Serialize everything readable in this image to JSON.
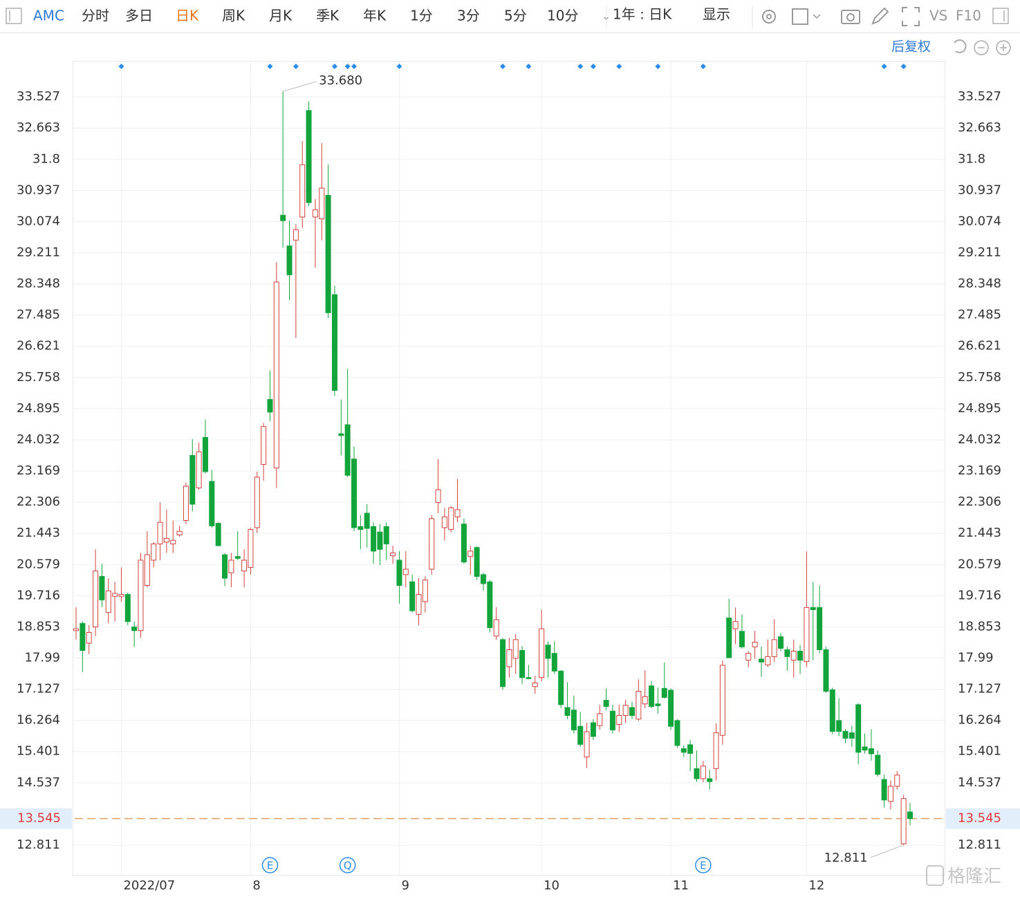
{
  "toolbar": {
    "symbol": "AMC",
    "periods": [
      "分时",
      "多日",
      "日K",
      "周K",
      "月K",
      "季K",
      "年K",
      "1分",
      "3分",
      "5分",
      "10分"
    ],
    "active_period": 2,
    "range": "1年 : 日K",
    "display": "显示",
    "compare": "VS",
    "f10": "F10"
  },
  "adjust": "后复权",
  "watermark": "格隆汇",
  "chart_data": {
    "type": "candlestick",
    "categories": [
      null,
      null,
      null,
      null,
      null,
      null,
      null,
      "2022/07",
      null,
      null,
      null,
      null,
      null,
      null,
      null,
      null,
      null,
      null,
      null,
      null,
      null,
      null,
      null,
      null,
      null,
      null,
      null,
      "8",
      null,
      null,
      null,
      null,
      null,
      null,
      null,
      null,
      null,
      null,
      null,
      null,
      null,
      null,
      null,
      null,
      null,
      null,
      null,
      null,
      null,
      null,
      "9",
      null,
      null,
      null,
      null,
      null,
      null,
      null,
      null,
      null,
      null,
      null,
      null,
      null,
      null,
      null,
      null,
      null,
      null,
      null,
      null,
      null,
      "10",
      null,
      null,
      null,
      null,
      null,
      null,
      null,
      null,
      null,
      null,
      null,
      null,
      null,
      null,
      null,
      null,
      null,
      null,
      null,
      "11",
      null,
      null,
      null,
      null,
      null,
      null,
      null,
      null,
      null,
      null,
      null,
      null,
      null,
      null,
      null,
      null,
      null,
      null,
      null,
      null,
      "12",
      null,
      null,
      null,
      null,
      null,
      null,
      null,
      null,
      null,
      null,
      null,
      null,
      null,
      null,
      null,
      null
    ],
    "open": [
      18.75,
      18.95,
      18.4,
      18.85,
      20.25,
      19.25,
      19.7,
      19.7,
      19.75,
      18.85,
      18.75,
      20.0,
      20.7,
      21.15,
      21.2,
      21.15,
      21.4,
      21.8,
      23.6,
      22.7,
      24.1,
      22.88,
      21.72,
      20.85,
      20.35,
      20.8,
      20.4,
      20.5,
      21.6,
      23.35,
      25.15,
      23.25,
      30.25,
      29.4,
      29.56,
      30.2,
      33.15,
      30.2,
      30.15,
      30.8,
      28.05,
      24.2,
      24.45,
      23.5,
      21.63,
      22.0,
      21.63,
      21.48,
      21.63,
      20.82,
      20.7,
      20.3,
      20.1,
      19.2,
      19.55,
      20.45,
      22.3,
      21.6,
      21.55,
      21.9,
      21.7,
      20.8,
      21.05,
      20.3,
      20.1,
      18.6,
      18.5,
      17.75,
      17.98,
      18.2,
      17.45,
      17.2,
      17.45,
      18.35,
      18.12,
      17.63,
      16.62,
      16.55,
      16.1,
      15.25,
      16.2,
      16.12,
      16.82,
      16.52,
      16.15,
      16.4,
      16.62,
      16.3,
      16.72,
      17.22,
      16.72,
      17.15,
      17.1,
      16.26,
      15.48,
      15.59,
      14.93,
      14.65,
      14.65,
      14.93,
      15.85,
      19.1,
      18.8,
      18.73,
      17.93,
      18.3,
      17.96,
      17.8,
      18.03,
      18.58,
      18.22,
      17.93,
      18.18,
      17.89,
      19.39,
      19.39,
      18.22,
      17.11,
      16.26,
      15.96,
      15.92,
      16.7,
      15.53,
      15.48,
      15.3,
      14.63,
      14.02,
      14.44,
      12.85,
      13.73
    ],
    "close": [
      18.8,
      18.2,
      18.7,
      20.4,
      19.6,
      19.85,
      19.78,
      19.75,
      19.0,
      18.75,
      20.7,
      20.85,
      21.15,
      21.75,
      21.3,
      21.25,
      21.5,
      22.75,
      22.25,
      23.7,
      23.15,
      21.65,
      21.1,
      20.2,
      20.7,
      20.75,
      20.7,
      21.55,
      23.0,
      24.4,
      24.8,
      28.4,
      30.1,
      28.6,
      29.85,
      31.65,
      30.6,
      30.4,
      31.0,
      27.55,
      25.4,
      24.15,
      23.05,
      21.6,
      21.55,
      21.58,
      20.95,
      21.0,
      21.15,
      20.9,
      20.0,
      20.45,
      19.3,
      19.75,
      20.15,
      21.85,
      22.65,
      21.9,
      22.15,
      22.1,
      20.65,
      20.95,
      20.25,
      20.05,
      18.83,
      19.05,
      17.2,
      18.22,
      18.5,
      17.45,
      17.42,
      17.3,
      18.8,
      17.98,
      17.63,
      16.7,
      16.4,
      16.0,
      15.6,
      15.95,
      15.82,
      16.45,
      16.65,
      16.0,
      16.4,
      16.68,
      16.4,
      17.07,
      16.92,
      16.65,
      16.67,
      16.9,
      16.1,
      15.57,
      15.38,
      15.35,
      14.65,
      15.0,
      14.57,
      15.92,
      17.79,
      18.0,
      19.0,
      18.3,
      18.12,
      18.43,
      17.88,
      18.03,
      18.5,
      18.26,
      18.03,
      18.18,
      17.93,
      19.39,
      19.33,
      18.22,
      17.07,
      15.96,
      15.96,
      15.77,
      15.77,
      15.38,
      15.44,
      15.34,
      14.77,
      14.06,
      14.44,
      14.75,
      14.1,
      13.545
    ],
    "low": [
      18.5,
      17.6,
      18.1,
      18.6,
      19.4,
      18.95,
      19.0,
      19.55,
      18.9,
      18.3,
      18.55,
      19.95,
      20.5,
      20.7,
      20.9,
      20.9,
      21.35,
      21.7,
      22.05,
      22.65,
      23.1,
      21.6,
      21.1,
      19.98,
      19.95,
      20.7,
      19.95,
      20.3,
      21.45,
      22.9,
      24.55,
      22.7,
      29.35,
      27.9,
      26.85,
      29.9,
      30.5,
      28.8,
      29.55,
      27.4,
      25.25,
      23.6,
      23.0,
      21.5,
      21.0,
      21.05,
      20.6,
      20.56,
      20.7,
      20.6,
      19.5,
      19.95,
      19.25,
      18.9,
      19.25,
      20.3,
      22.0,
      21.25,
      21.47,
      21.75,
      20.6,
      20.3,
      20.15,
      19.85,
      18.7,
      18.5,
      17.12,
      17.45,
      17.55,
      17.27,
      17.4,
      17.0,
      17.35,
      17.45,
      17.55,
      16.6,
      16.3,
      15.9,
      15.53,
      14.95,
      15.72,
      16.01,
      16.55,
      15.9,
      15.95,
      16.2,
      16.3,
      16.25,
      16.6,
      16.6,
      16.45,
      16.87,
      16.0,
      15.5,
      15.25,
      14.86,
      14.56,
      14.55,
      14.35,
      14.6,
      15.59,
      17.99,
      18.37,
      18.25,
      17.74,
      17.97,
      17.47,
      17.74,
      17.88,
      18.18,
      17.64,
      17.45,
      17.55,
      17.74,
      17.93,
      18.12,
      17.03,
      15.88,
      15.83,
      15.64,
      15.53,
      15.05,
      15.34,
      15.15,
      14.71,
      13.85,
      13.8,
      14.35,
      12.811,
      13.36
    ],
    "high": [
      19.4,
      19.0,
      18.9,
      21.0,
      20.6,
      20.2,
      20.1,
      20.5,
      19.8,
      19.0,
      20.9,
      21.5,
      21.2,
      22.3,
      22.1,
      21.8,
      21.65,
      22.85,
      24.05,
      23.95,
      24.6,
      23.2,
      21.75,
      20.9,
      20.9,
      21.5,
      21.0,
      21.6,
      23.15,
      24.5,
      25.95,
      28.95,
      33.68,
      30.1,
      30.0,
      32.3,
      33.4,
      30.7,
      32.25,
      31.65,
      28.3,
      25.15,
      26.0,
      23.85,
      21.95,
      22.25,
      21.75,
      21.7,
      21.75,
      21.1,
      20.95,
      20.95,
      20.3,
      20.2,
      20.25,
      21.95,
      23.5,
      22.15,
      22.2,
      22.95,
      21.85,
      21.1,
      21.08,
      20.35,
      20.15,
      19.4,
      18.55,
      18.55,
      18.65,
      18.32,
      17.8,
      17.5,
      19.33,
      18.45,
      18.45,
      17.65,
      17.32,
      16.95,
      16.5,
      16.2,
      16.3,
      16.7,
      17.15,
      16.7,
      16.7,
      16.83,
      16.78,
      17.4,
      17.65,
      17.36,
      17.17,
      17.87,
      17.15,
      16.3,
      15.57,
      15.72,
      15.43,
      15.14,
      14.9,
      16.18,
      17.92,
      19.63,
      19.39,
      19.2,
      18.18,
      18.75,
      18.31,
      18.5,
      19.07,
      18.68,
      18.3,
      18.5,
      18.35,
      20.94,
      20.1,
      20.0,
      18.3,
      17.17,
      16.88,
      16.02,
      16.11,
      16.74,
      15.9,
      16.02,
      15.43,
      14.77,
      14.6,
      14.86,
      14.2,
      13.98
    ],
    "up_color": "#d2413a",
    "down_color": "#13a53c",
    "ylim": [
      11.987,
      34.524
    ],
    "yticks": [
      33.527,
      32.663,
      31.8,
      30.937,
      30.074,
      29.211,
      28.348,
      27.485,
      26.621,
      25.758,
      24.895,
      24.032,
      23.169,
      22.306,
      21.443,
      20.579,
      19.716,
      18.853,
      17.99,
      17.127,
      16.264,
      15.401,
      14.537,
      12.811
    ],
    "grid": true,
    "last_price": 13.545,
    "max_label": {
      "value": 33.68,
      "label": "33.680"
    },
    "min_label": 12.811,
    "top_markers": [
      7,
      30,
      34,
      40,
      42,
      43,
      50,
      66,
      70,
      78,
      80,
      84,
      90,
      97,
      125,
      128
    ],
    "events": [
      {
        "index": 30,
        "label": "E"
      },
      {
        "index": 42,
        "label": "Q"
      },
      {
        "index": 97,
        "label": "E"
      }
    ]
  }
}
